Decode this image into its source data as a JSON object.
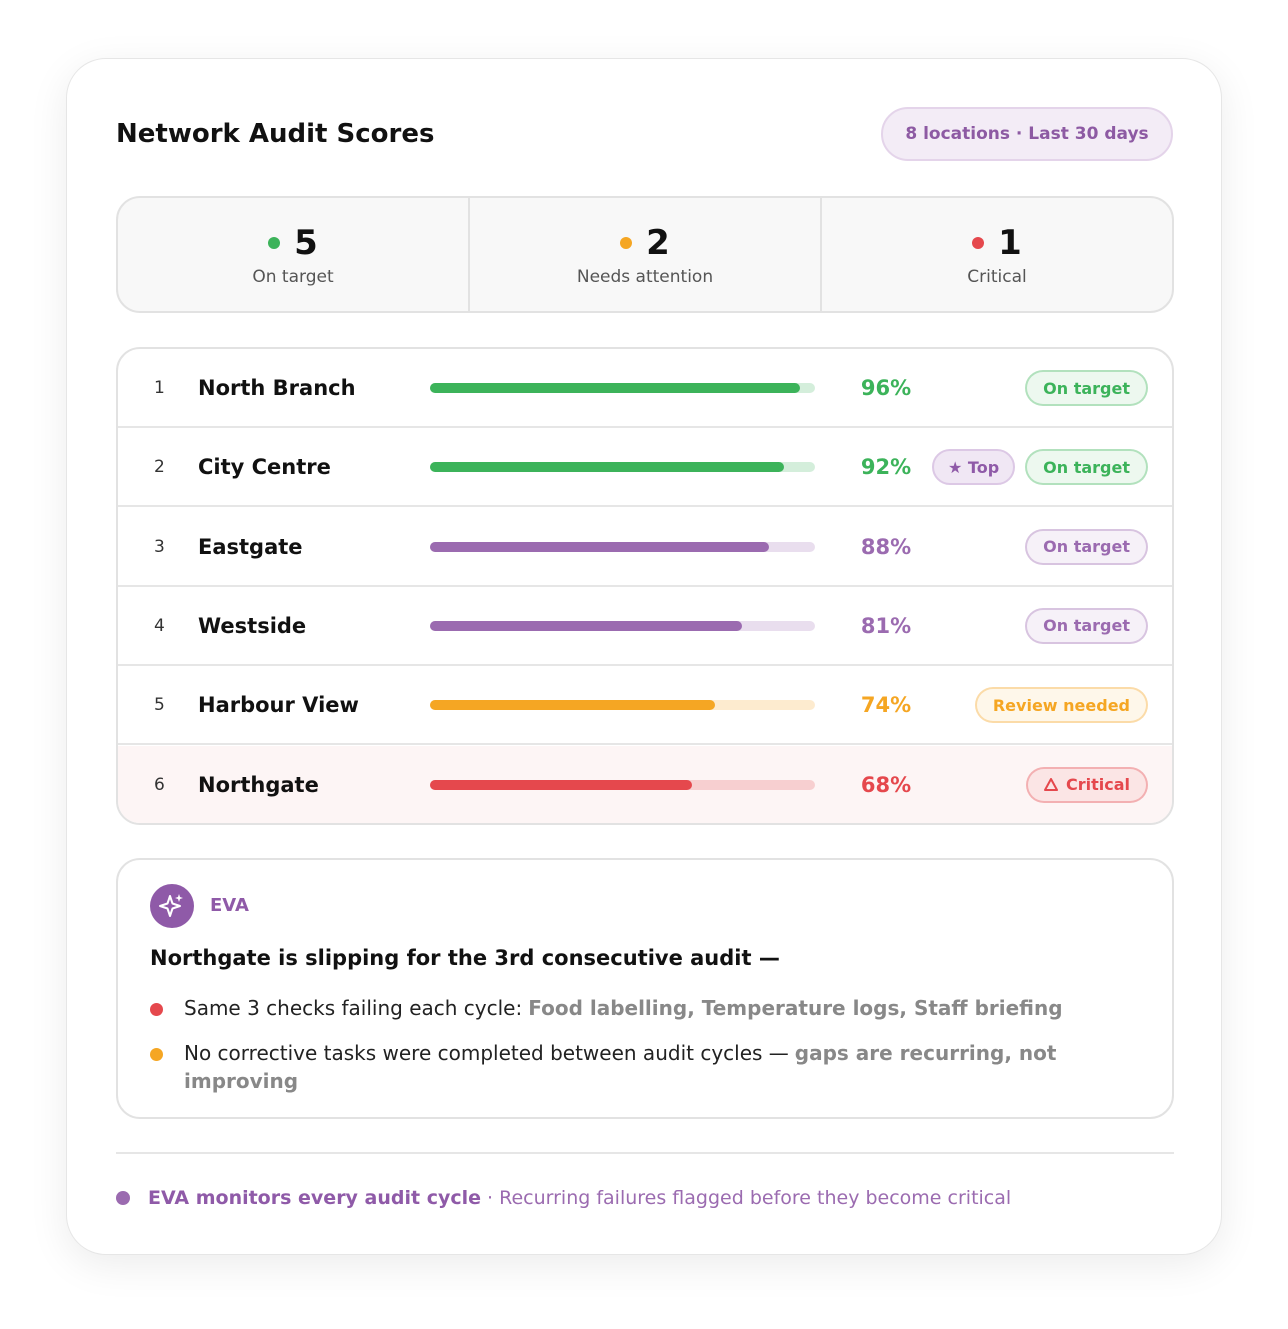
{
  "header": {
    "title": "Network Audit Scores",
    "filter": "8 locations · Last 30 days"
  },
  "summary": [
    {
      "count": 5,
      "label": "On target",
      "color": "#3cb35a"
    },
    {
      "count": 2,
      "label": "Needs attention",
      "color": "#f5a623"
    },
    {
      "count": 1,
      "label": "Critical",
      "color": "#e5484d"
    }
  ],
  "rows": [
    {
      "rank": 1,
      "name": "North Branch",
      "score": 96,
      "score_label": "96%",
      "status": "On target",
      "color": "#3cb35a"
    },
    {
      "rank": 2,
      "name": "City Centre",
      "score": 92,
      "score_label": "92%",
      "tag": "★ Top",
      "status": "On target",
      "color": "#3cb35a"
    },
    {
      "rank": 3,
      "name": "Eastgate",
      "score": 88,
      "score_label": "88%",
      "status": "On target",
      "color": "#9b6bb0"
    },
    {
      "rank": 4,
      "name": "Westside",
      "score": 81,
      "score_label": "81%",
      "status": "On target",
      "color": "#9b6bb0"
    },
    {
      "rank": 5,
      "name": "Harbour View",
      "score": 74,
      "score_label": "74%",
      "status": "Review needed",
      "color": "#f5a623"
    },
    {
      "rank": 6,
      "name": "Northgate",
      "score": 68,
      "score_label": "68%",
      "status": "Critical",
      "color": "#e5484d"
    }
  ],
  "insight": {
    "agent": "EVA",
    "headline": "Northgate is slipping for the 3rd consecutive audit —",
    "points": [
      {
        "text": "Same 3 checks failing each cycle:",
        "detail": "Food labelling, Temperature logs, Staff briefing",
        "color": "#e5484d"
      },
      {
        "text": "No corrective tasks were completed between audit cycles —",
        "detail": "gaps are recurring, not improving",
        "color": "#f5a623"
      }
    ]
  },
  "footer": {
    "highlight": "EVA monitors every audit cycle",
    "text": "· Recurring failures flagged before they become critical"
  }
}
